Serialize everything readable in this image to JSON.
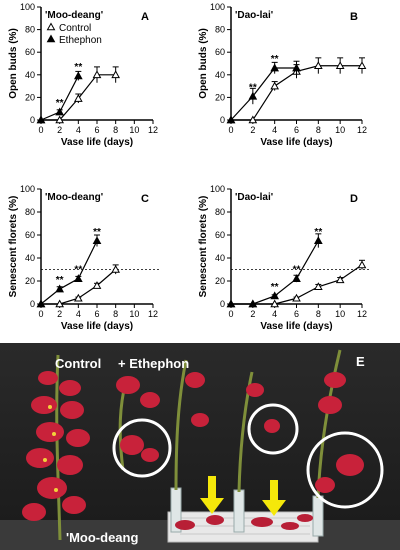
{
  "chart_data": [
    {
      "type": "line",
      "panel": "A",
      "cultivar": "'Moo-deang'",
      "xlabel": "Vase life (days)",
      "ylabel": "Open buds (%)",
      "xlim": [
        0,
        12
      ],
      "ylim": [
        0,
        100
      ],
      "xticks": [
        0,
        2,
        4,
        6,
        8,
        10,
        12
      ],
      "yticks": [
        0,
        20,
        40,
        60,
        80,
        100
      ],
      "legend": "top-left",
      "series": [
        {
          "name": "Control",
          "marker": "open-triangle",
          "x": [
            0,
            2,
            4,
            6,
            8
          ],
          "y": [
            0,
            0,
            19,
            40,
            40
          ],
          "err": [
            0,
            0,
            4,
            7,
            7
          ]
        },
        {
          "name": "Ethephon",
          "marker": "filled-triangle",
          "x": [
            0,
            2,
            4
          ],
          "y": [
            0,
            7,
            39
          ],
          "err": [
            0,
            2,
            4
          ]
        }
      ],
      "annotations": [
        {
          "x": 2,
          "y": 7,
          "text": "**"
        },
        {
          "x": 4,
          "y": 39,
          "text": "**"
        }
      ]
    },
    {
      "type": "line",
      "panel": "B",
      "cultivar": "'Dao-lai'",
      "xlabel": "Vase life (days)",
      "ylabel": "Open buds (%)",
      "xlim": [
        0,
        12
      ],
      "ylim": [
        0,
        100
      ],
      "xticks": [
        0,
        2,
        4,
        6,
        8,
        10,
        12
      ],
      "yticks": [
        0,
        20,
        40,
        60,
        80,
        100
      ],
      "series": [
        {
          "name": "Control",
          "marker": "open-triangle",
          "x": [
            0,
            2,
            4,
            6,
            8,
            10,
            12
          ],
          "y": [
            0,
            0,
            30,
            43,
            48,
            48,
            48
          ],
          "err": [
            0,
            0,
            4,
            6,
            7,
            7,
            7
          ]
        },
        {
          "name": "Ethephon",
          "marker": "filled-triangle",
          "x": [
            0,
            2,
            4,
            6
          ],
          "y": [
            0,
            21,
            46,
            46
          ],
          "err": [
            0,
            7,
            5,
            6
          ]
        }
      ],
      "annotations": [
        {
          "x": 2,
          "y": 21,
          "text": "**"
        },
        {
          "x": 4,
          "y": 46,
          "text": "**"
        }
      ]
    },
    {
      "type": "line",
      "panel": "C",
      "cultivar": "'Moo-deang'",
      "xlabel": "Vase life (days)",
      "ylabel": "Senescent florets (%)",
      "xlim": [
        0,
        12
      ],
      "ylim": [
        0,
        100
      ],
      "xticks": [
        0,
        2,
        4,
        6,
        8,
        10,
        12
      ],
      "yticks": [
        0,
        20,
        40,
        60,
        80,
        100
      ],
      "reference_line": 30,
      "series": [
        {
          "name": "Control",
          "marker": "open-triangle",
          "x": [
            0,
            2,
            4,
            6,
            8
          ],
          "y": [
            0,
            0,
            5,
            16,
            30
          ],
          "err": [
            0,
            0,
            1,
            2,
            4
          ]
        },
        {
          "name": "Ethephon",
          "marker": "filled-triangle",
          "x": [
            0,
            2,
            4,
            6
          ],
          "y": [
            0,
            13,
            22,
            55
          ],
          "err": [
            0,
            2,
            2,
            5
          ]
        }
      ],
      "annotations": [
        {
          "x": 2,
          "y": 13,
          "text": "**"
        },
        {
          "x": 4,
          "y": 22,
          "text": "**"
        },
        {
          "x": 6,
          "y": 55,
          "text": "**"
        }
      ]
    },
    {
      "type": "line",
      "panel": "D",
      "cultivar": "'Dao-lai'",
      "xlabel": "Vase life (days)",
      "ylabel": "Senescent florets (%)",
      "xlim": [
        0,
        12
      ],
      "ylim": [
        0,
        100
      ],
      "xticks": [
        0,
        2,
        4,
        6,
        8,
        10,
        12
      ],
      "yticks": [
        0,
        20,
        40,
        60,
        80,
        100
      ],
      "reference_line": 30,
      "series": [
        {
          "name": "Control",
          "marker": "open-triangle",
          "x": [
            0,
            2,
            4,
            6,
            8,
            10,
            12
          ],
          "y": [
            0,
            0,
            0,
            5,
            15,
            21,
            34
          ],
          "err": [
            0,
            0,
            0,
            1,
            2,
            2,
            4
          ]
        },
        {
          "name": "Ethephon",
          "marker": "filled-triangle",
          "x": [
            0,
            2,
            4,
            6,
            8
          ],
          "y": [
            0,
            0,
            7,
            22,
            55
          ],
          "err": [
            0,
            0,
            1,
            3,
            6
          ]
        }
      ],
      "annotations": [
        {
          "x": 4,
          "y": 7,
          "text": "**"
        },
        {
          "x": 6,
          "y": 22,
          "text": "**"
        },
        {
          "x": 8,
          "y": 55,
          "text": "**"
        }
      ]
    }
  ],
  "photo": {
    "letter": "E",
    "label_control": "Control",
    "label_treatment": "+ Ethephon",
    "label_cultivar": "'Moo-deang"
  }
}
